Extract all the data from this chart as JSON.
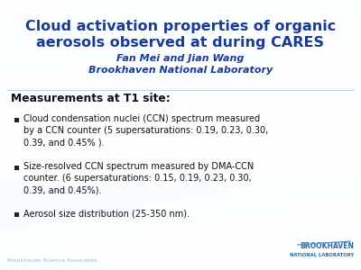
{
  "title_line1": "Cloud activation properties of organic",
  "title_line2": "aerosols observed at during CARES",
  "subtitle_line1": "Fan Mei and Jian Wang",
  "subtitle_line2": "Brookhaven National Laboratory",
  "section_header": "Measurements at T1 site:",
  "bullets": [
    "Cloud condensation nuclei (CCN) spectrum measured\nby a CCN counter (5 supersaturations: 0.19, 0.23, 0.30,\n0.39, and 0.45% ).",
    "Size-resolved CCN spectrum measured by DMA-CCN\ncounter. (6 supersaturations: 0.15, 0.19, 0.23, 0.30,\n0.39, and 0.45%).",
    "Aerosol size distribution (25-350 nm)."
  ],
  "footer_text": "Brookhaven Science Associates",
  "title_color": "#1a3a9a",
  "subtitle_color": "#1a3a9a",
  "header_color": "#111111",
  "bullet_color": "#111111",
  "brookhaven_blue": "#2a6aaf",
  "title_fontsize": 11.5,
  "subtitle_fontsize": 8.0,
  "header_fontsize": 8.8,
  "bullet_fontsize": 7.0,
  "footer_fontsize": 4.5
}
